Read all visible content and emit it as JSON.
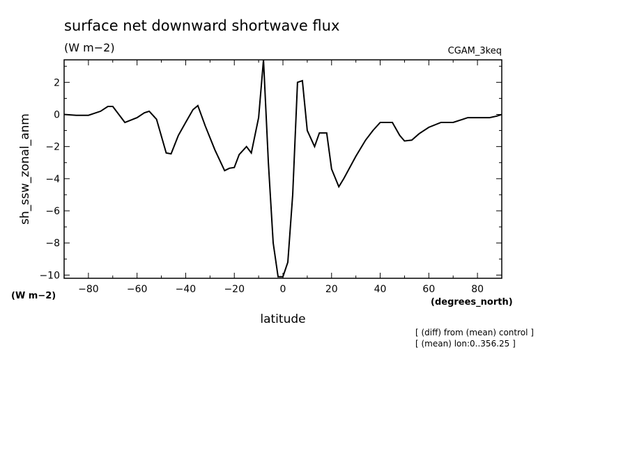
{
  "chart_data": {
    "type": "line",
    "title": "surface net downward shortwave flux",
    "subtitle": "(W m−2)",
    "run_label": "CGAM_3keq",
    "ylabel": "sh_ssw_zonal_anm",
    "yunits": "(W m−2)",
    "xlabel": "latitude",
    "xunits": "(degrees_north)",
    "xlim": [
      -90,
      90
    ],
    "ylim": [
      -10.2,
      3.4
    ],
    "xticks": [
      -80,
      -60,
      -40,
      -20,
      0,
      20,
      40,
      60,
      80
    ],
    "xtick_labels": [
      "−80",
      "−60",
      "−40",
      "−20",
      "0",
      "20",
      "40",
      "60",
      "80"
    ],
    "yticks": [
      -10,
      -8,
      -6,
      -4,
      -2,
      0,
      2
    ],
    "ytick_labels": [
      "−10",
      "−8",
      "−6",
      "−4",
      "−2",
      "0",
      "2"
    ],
    "notes": [
      "[ (diff) from (mean) control ]",
      "[ (mean) lon:0..356.25 ]"
    ],
    "grid": false,
    "series": [
      {
        "x": [
          -90,
          -85,
          -80,
          -75,
          -72,
          -70,
          -65,
          -60,
          -57,
          -55,
          -52,
          -48,
          -46,
          -43,
          -40,
          -37,
          -35,
          -32,
          -28,
          -24,
          -22,
          -20,
          -18,
          -15,
          -13,
          -10,
          -8,
          -6,
          -4,
          -2,
          0,
          2,
          4,
          6,
          8,
          10,
          13,
          15,
          18,
          20,
          23,
          25,
          30,
          34,
          37,
          40,
          42,
          45,
          48,
          50,
          53,
          56,
          60,
          65,
          70,
          74,
          76,
          80,
          85,
          88,
          90
        ],
        "y": [
          0.0,
          -0.05,
          -0.05,
          0.2,
          0.5,
          0.5,
          -0.5,
          -0.2,
          0.1,
          0.2,
          -0.3,
          -2.4,
          -2.45,
          -1.3,
          -0.5,
          0.3,
          0.55,
          -0.7,
          -2.2,
          -3.5,
          -3.35,
          -3.3,
          -2.5,
          -2.0,
          -2.4,
          -0.2,
          3.4,
          -3.0,
          -8.0,
          -10.1,
          -10.1,
          -9.2,
          -5.0,
          2.0,
          2.1,
          -1.0,
          -2.0,
          -1.15,
          -1.15,
          -3.4,
          -4.5,
          -4.0,
          -2.6,
          -1.6,
          -1.0,
          -0.5,
          -0.5,
          -0.5,
          -1.3,
          -1.65,
          -1.6,
          -1.2,
          -0.8,
          -0.5,
          -0.5,
          -0.3,
          -0.2,
          -0.2,
          -0.2,
          -0.1,
          0.0
        ]
      }
    ]
  }
}
